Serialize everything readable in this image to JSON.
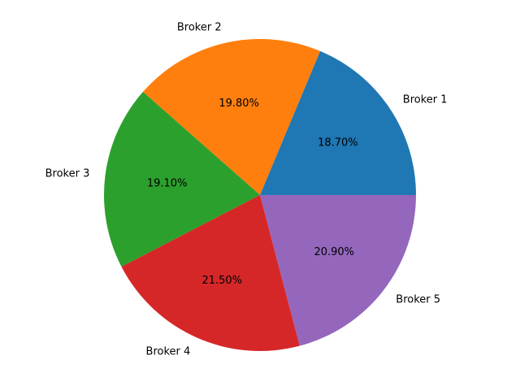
{
  "chart_data": {
    "type": "pie",
    "title": "",
    "start_angle_deg": 0,
    "direction": "counterclockwise",
    "slices": [
      {
        "label": "Broker 1",
        "value": 18.7,
        "pct_label": "18.70%",
        "color": "#1f77b4"
      },
      {
        "label": "Broker 2",
        "value": 19.8,
        "pct_label": "19.80%",
        "color": "#ff7f0e"
      },
      {
        "label": "Broker 3",
        "value": 19.1,
        "pct_label": "19.10%",
        "color": "#2ca02c"
      },
      {
        "label": "Broker 4",
        "value": 21.5,
        "pct_label": "21.50%",
        "color": "#d62728"
      },
      {
        "label": "Broker 5",
        "value": 20.9,
        "pct_label": "20.90%",
        "color": "#9467bd"
      }
    ]
  }
}
